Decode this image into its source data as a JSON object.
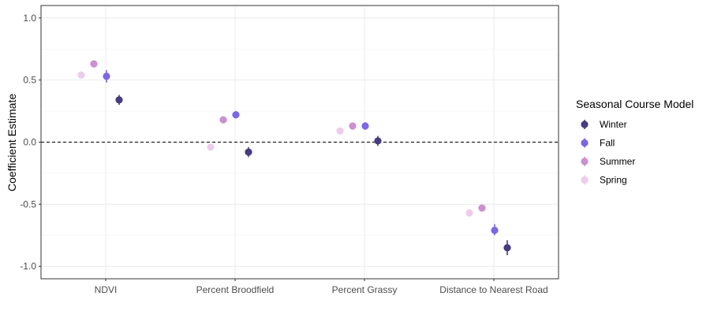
{
  "chart_data": {
    "type": "scatter",
    "subtype": "coefficient-dot-plot-with-error-bars",
    "title": "",
    "xlabel": "",
    "ylabel": "Coefficient Estimate",
    "ylim": [
      -1.1,
      1.1
    ],
    "yticks": [
      -1.0,
      -0.5,
      0.0,
      0.5,
      1.0
    ],
    "ytick_labels": [
      "-1.0",
      "-0.5",
      "0.0",
      "0.5",
      "1.0"
    ],
    "categories": [
      "NDVI",
      "Percent Broodfield",
      "Percent Grassy",
      "Distance to Nearest Road"
    ],
    "reference_line": {
      "y": 0,
      "style": "dashed",
      "color": "#000000"
    },
    "grid": true,
    "legend": {
      "title": "Seasonal Course Model",
      "position": "right"
    },
    "series": [
      {
        "name": "Spring",
        "color": "#EDCDEB",
        "values": [
          0.54,
          -0.04,
          0.09,
          -0.57
        ],
        "lower": [
          0.51,
          -0.06,
          0.07,
          -0.6
        ],
        "upper": [
          0.57,
          -0.02,
          0.11,
          -0.54
        ]
      },
      {
        "name": "Summer",
        "color": "#CC8FCF",
        "values": [
          0.63,
          0.18,
          0.13,
          -0.53
        ],
        "lower": [
          0.61,
          0.16,
          0.11,
          -0.55
        ],
        "upper": [
          0.65,
          0.2,
          0.15,
          -0.51
        ]
      },
      {
        "name": "Fall",
        "color": "#7B68E4",
        "values": [
          0.53,
          0.22,
          0.13,
          -0.71
        ],
        "lower": [
          0.48,
          0.19,
          0.1,
          -0.75
        ],
        "upper": [
          0.58,
          0.25,
          0.16,
          -0.66
        ]
      },
      {
        "name": "Winter",
        "color": "#473C7F",
        "values": [
          0.34,
          -0.08,
          0.01,
          -0.85
        ],
        "lower": [
          0.3,
          -0.12,
          -0.03,
          -0.91
        ],
        "upper": [
          0.38,
          -0.04,
          0.05,
          -0.79
        ]
      }
    ],
    "legend_order": [
      "Winter",
      "Fall",
      "Summer",
      "Spring"
    ]
  }
}
